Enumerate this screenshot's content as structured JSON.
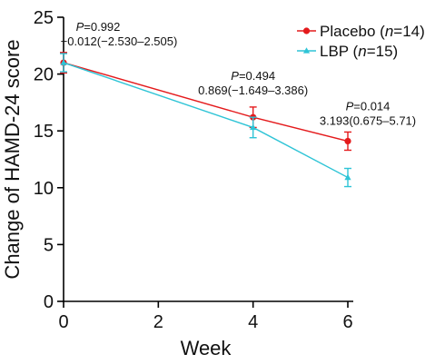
{
  "chart_data": {
    "type": "line",
    "xlabel": "Week",
    "ylabel": "Change of HAMD-24 score",
    "xlim": [
      0,
      6
    ],
    "ylim": [
      0,
      25
    ],
    "xticks": [
      0,
      2,
      4,
      6
    ],
    "yticks": [
      0,
      5,
      10,
      15,
      20,
      25
    ],
    "grid": false,
    "legend_position": "top-right",
    "series": [
      {
        "label_main": "Placebo (",
        "label_italic": "n",
        "label_tail": "=14)",
        "color": "#e41a1c",
        "marker": "circle",
        "x": [
          0,
          4,
          6
        ],
        "y": [
          21.0,
          16.2,
          14.1
        ],
        "err": [
          0.9,
          0.9,
          0.8
        ]
      },
      {
        "label_main": "LBP (",
        "label_italic": "n",
        "label_tail": "=15)",
        "color": "#2ec4d6",
        "marker": "triangle",
        "x": [
          0,
          4,
          6
        ],
        "y": [
          21.0,
          15.3,
          10.9
        ],
        "err": [
          0.8,
          0.9,
          0.8
        ]
      }
    ],
    "annotations": [
      {
        "x": 0,
        "y": 21.9,
        "p_italic": "P",
        "p_value": "=0.992",
        "ci": "−0.012(−2.530–2.505)"
      },
      {
        "x": 4,
        "y": 17.1,
        "p_italic": "P",
        "p_value": "=0.494",
        "ci": "0.869(−1.649–3.386)"
      },
      {
        "x": 6,
        "y": 14.9,
        "p_italic": "P",
        "p_value": "=0.014",
        "ci": "3.193(0.675–5.71)"
      }
    ]
  }
}
